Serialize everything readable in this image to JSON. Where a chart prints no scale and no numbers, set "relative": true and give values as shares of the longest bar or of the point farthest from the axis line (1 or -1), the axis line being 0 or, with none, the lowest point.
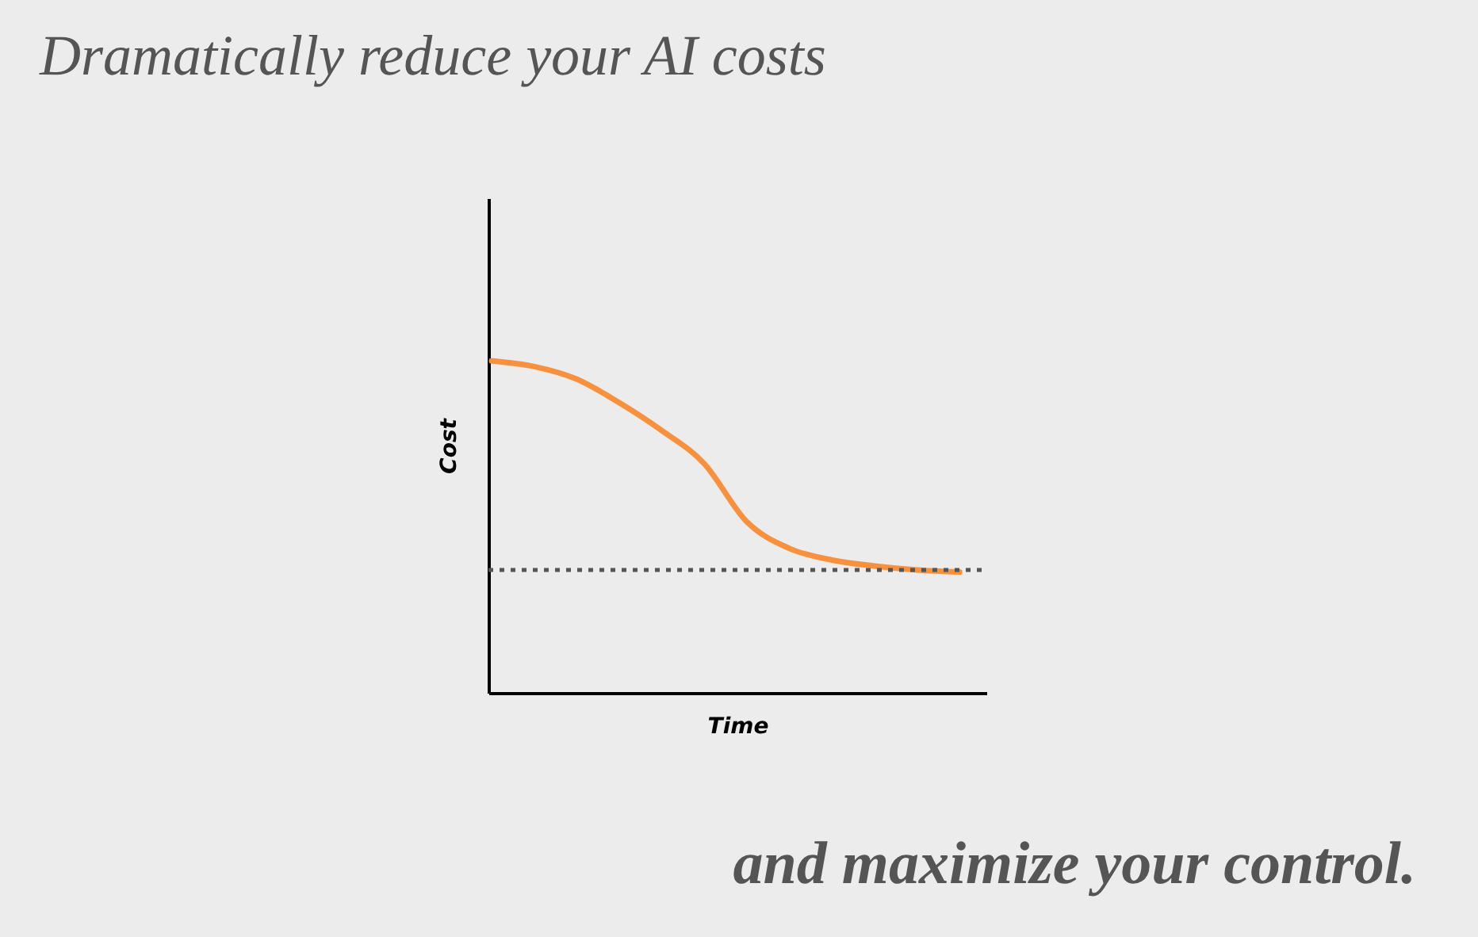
{
  "chart_data": {
    "type": "line",
    "title": "Dramatically reduce your AI costs",
    "xlabel": "Time",
    "ylabel": "Cost",
    "relative": true,
    "categories": [
      null,
      null,
      null,
      null,
      null,
      null,
      null,
      null,
      null,
      null,
      null,
      null
    ],
    "series": [
      {
        "color": "#f7913d",
        "values": [
          1.0,
          0.983,
          0.945,
          0.874,
          0.79,
          0.69,
          0.515,
          0.435,
          0.4,
          0.382,
          0.37,
          0.364
        ]
      }
    ],
    "ref_lines": [
      {
        "axis": "y",
        "value": 0.37,
        "color": "#555555",
        "line_style": "dotted"
      }
    ],
    "annotations": [
      "and maximize your control."
    ],
    "grid": false,
    "marker": "none",
    "line_style": "solid"
  }
}
